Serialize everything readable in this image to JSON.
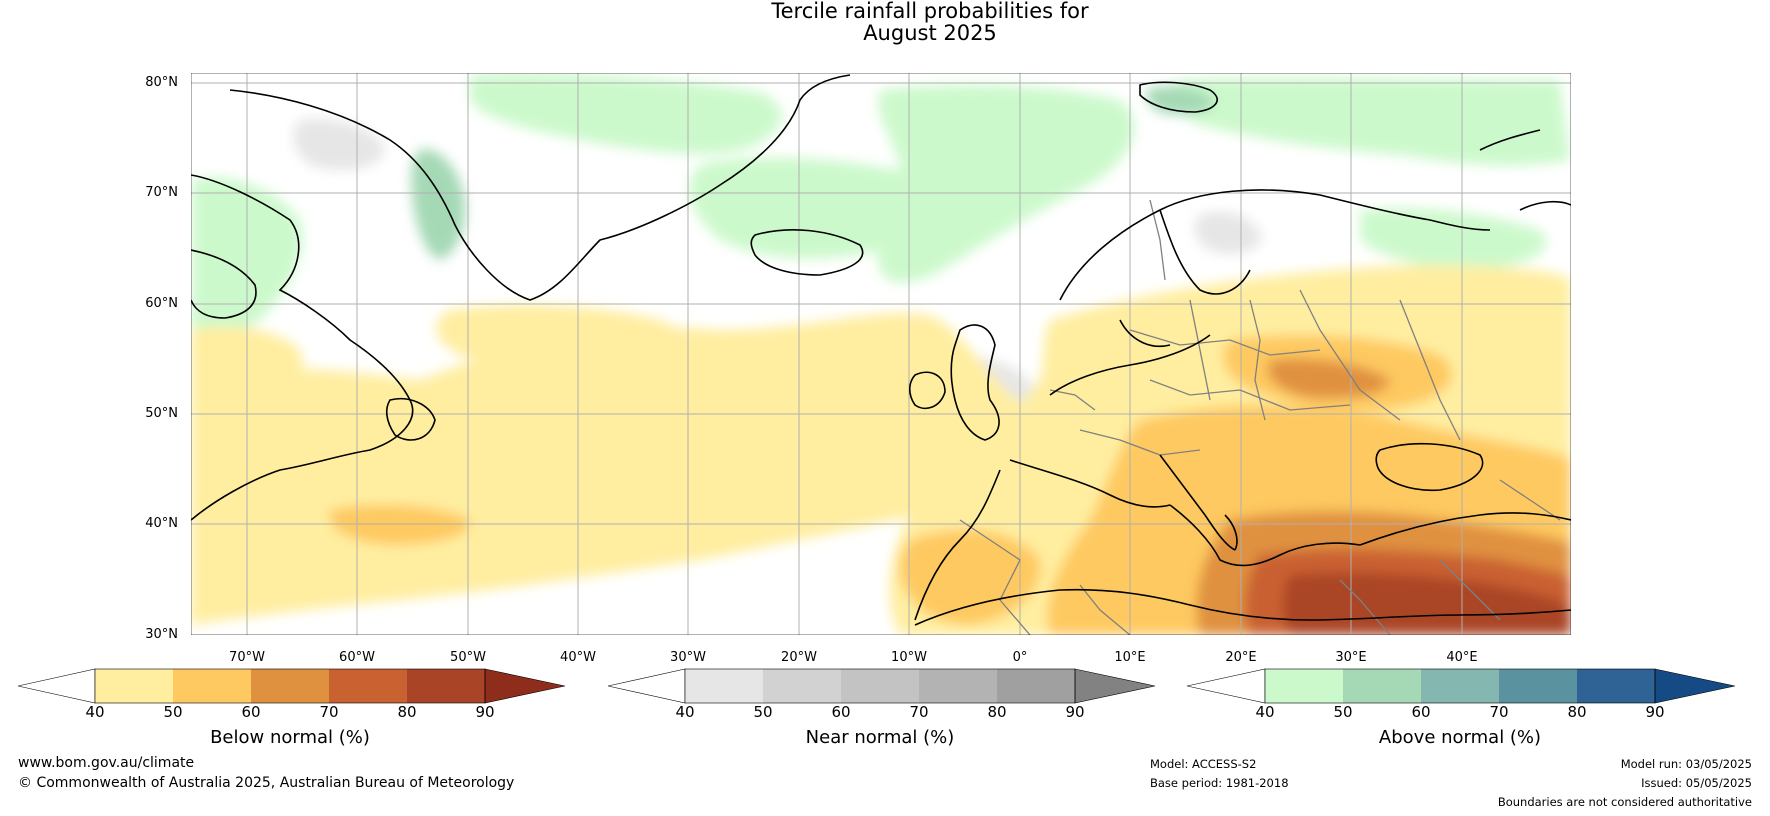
{
  "title": {
    "line1": "Tercile rainfall probabilities for",
    "line2": "August 2025"
  },
  "map": {
    "region": "North Atlantic and Europe",
    "lat_labels": [
      "80°N",
      "70°N",
      "60°N",
      "50°N",
      "40°N",
      "30°N"
    ],
    "lon_labels": [
      "70°W",
      "60°W",
      "50°W",
      "40°W",
      "30°W",
      "20°W",
      "10°W",
      "0°",
      "10°E",
      "20°E",
      "30°E",
      "40°E"
    ],
    "lat_range": [
      30,
      81
    ],
    "lon_range": [
      -75,
      50
    ],
    "colors": {
      "coastline": "#000000",
      "borders": "#808080",
      "gridlines": "#b0b0b0"
    }
  },
  "colorbars": [
    {
      "label": "Below normal (%)",
      "ticks": [
        "40",
        "50",
        "60",
        "70",
        "80",
        "90"
      ],
      "colors": [
        "#ffeea0",
        "#fec961",
        "#e0913f",
        "#c96130",
        "#aa4427",
        "#8f2d1c"
      ]
    },
    {
      "label": "Near normal (%)",
      "ticks": [
        "40",
        "50",
        "60",
        "70",
        "80",
        "90"
      ],
      "colors": [
        "#e6e6e6",
        "#d2d2d2",
        "#c3c3c3",
        "#b3b3b3",
        "#a0a0a0",
        "#828282"
      ]
    },
    {
      "label": "Above normal (%)",
      "ticks": [
        "40",
        "50",
        "60",
        "70",
        "80",
        "90"
      ],
      "colors": [
        "#ccf9cc",
        "#a5d9b6",
        "#84b7b0",
        "#5b92a0",
        "#2f6396",
        "#154a84"
      ]
    }
  ],
  "footer": {
    "website": "www.bom.gov.au/climate",
    "copyright": "© Commonwealth of Australia 2025, Australian Bureau of Meteorology",
    "model": "Model: ACCESS-S2",
    "base_period": "Base period: 1981-2018",
    "model_run": "Model run: 03/05/2025",
    "issued": "Issued: 05/05/2025",
    "disclaimer": "Boundaries are not considered authoritative"
  }
}
